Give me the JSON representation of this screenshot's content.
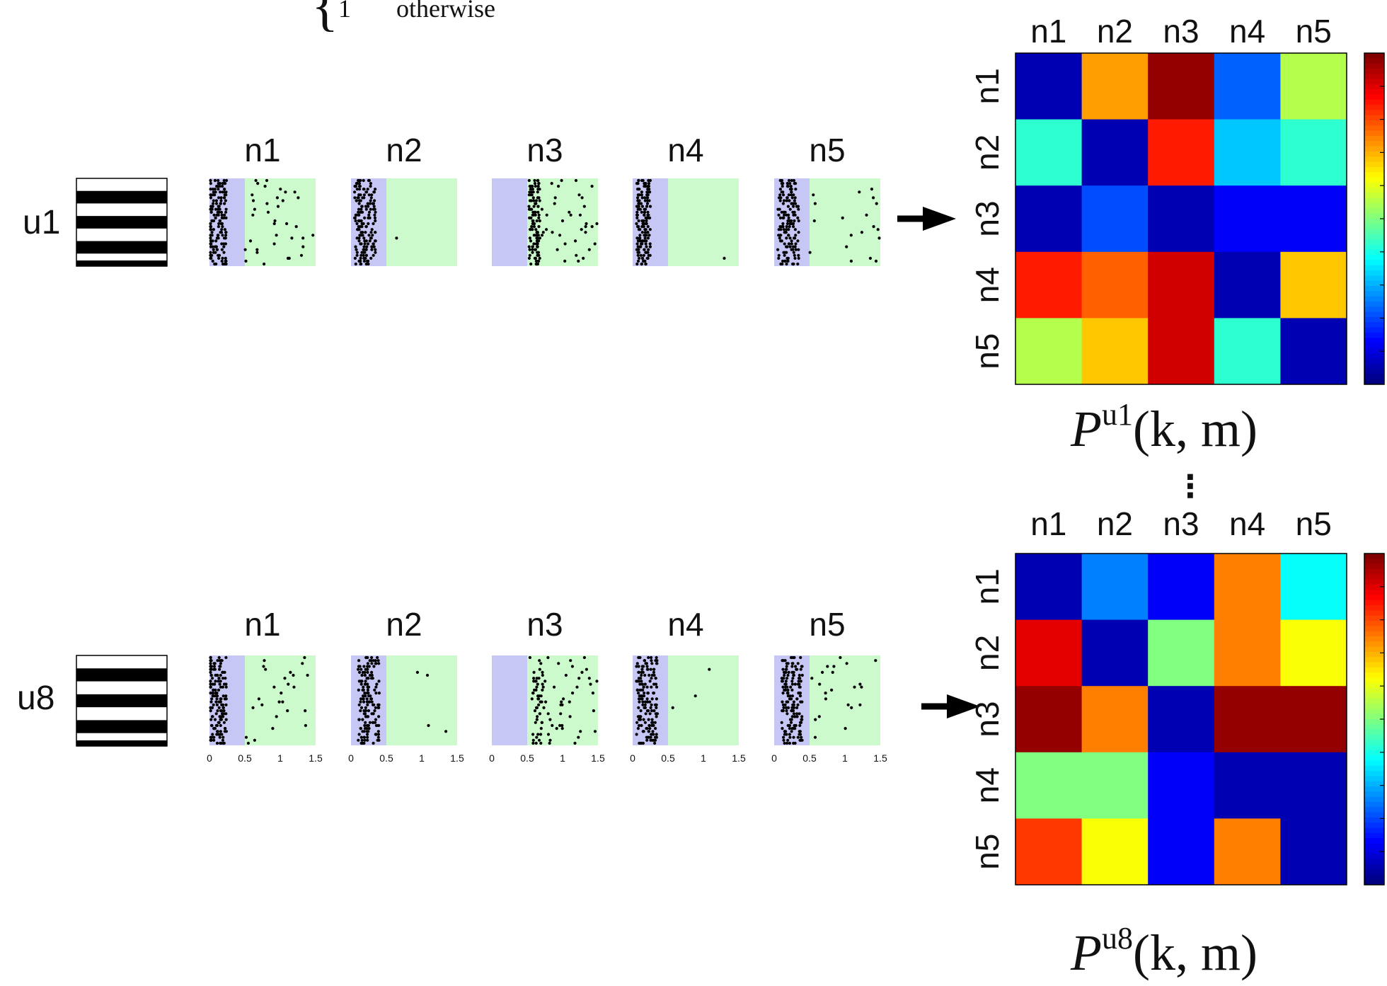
{
  "top_formula_fragment": {
    "brace": "{",
    "one": "1",
    "text": "otherwise"
  },
  "stimulus_labels": [
    "u1",
    "u8"
  ],
  "neuron_labels": [
    "n1",
    "n2",
    "n3",
    "n4",
    "n5"
  ],
  "raster_axis_ticks": [
    "0",
    "0.5",
    "1",
    "1.5"
  ],
  "ellipsis": "⋮",
  "matrix_titles": [
    {
      "base": "P",
      "sup": "u1",
      "args": "(k, m)"
    },
    {
      "base": "P",
      "sup": "u8",
      "args": "(k, m)"
    }
  ],
  "colors": {
    "raster_early_bg": "#c7c7f5",
    "raster_late_bg": "#ccfacc",
    "spike": "#000000",
    "stripe": "#000000"
  },
  "chart_data": [
    {
      "type": "heatmap",
      "title": "P^{u1}(k,m)",
      "rows": [
        "n1",
        "n2",
        "n3",
        "n4",
        "n5"
      ],
      "cols": [
        "n1",
        "n2",
        "n3",
        "n4",
        "n5"
      ],
      "colormap": "jet",
      "values": [
        [
          0.05,
          0.72,
          0.98,
          0.22,
          0.55
        ],
        [
          0.42,
          0.05,
          0.85,
          0.32,
          0.42
        ],
        [
          0.05,
          0.2,
          0.05,
          0.12,
          0.12
        ],
        [
          0.85,
          0.78,
          0.92,
          0.05,
          0.68
        ],
        [
          0.55,
          0.68,
          0.92,
          0.42,
          0.05
        ]
      ]
    },
    {
      "type": "heatmap",
      "title": "P^{u8}(k,m)",
      "rows": [
        "n1",
        "n2",
        "n3",
        "n4",
        "n5"
      ],
      "cols": [
        "n1",
        "n2",
        "n3",
        "n4",
        "n5"
      ],
      "colormap": "jet",
      "values": [
        [
          0.05,
          0.25,
          0.12,
          0.75,
          0.38
        ],
        [
          0.9,
          0.05,
          0.5,
          0.75,
          0.62
        ],
        [
          0.98,
          0.75,
          0.05,
          0.98,
          0.98
        ],
        [
          0.5,
          0.5,
          0.12,
          0.05,
          0.05
        ],
        [
          0.82,
          0.62,
          0.12,
          0.75,
          0.05
        ]
      ]
    }
  ]
}
